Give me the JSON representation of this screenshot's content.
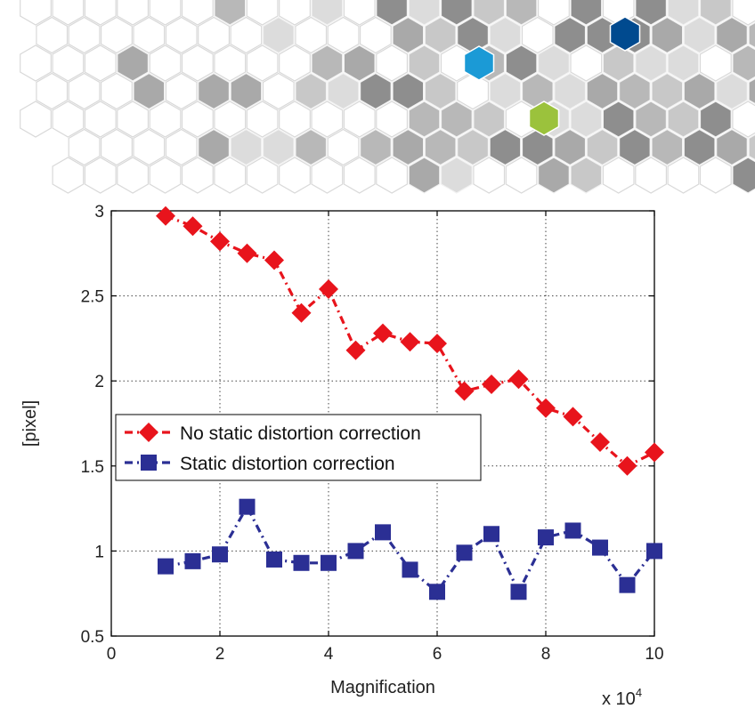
{
  "chart_data": {
    "type": "line",
    "title": "",
    "xlabel": "Magnification",
    "ylabel": "[pixel]",
    "x_multiplier_label": "x 10",
    "x_multiplier_exponent": "4",
    "xlim": [
      0,
      10
    ],
    "ylim": [
      0.5,
      3
    ],
    "xticks": [
      0,
      2,
      4,
      6,
      8,
      10
    ],
    "yticks": [
      0.5,
      1,
      1.5,
      2,
      2.5,
      3
    ],
    "xtick_labels": [
      "0",
      "2",
      "4",
      "6",
      "8",
      "10"
    ],
    "ytick_labels": [
      "0.5",
      "1",
      "1.5",
      "2",
      "2.5",
      "3"
    ],
    "grid": true,
    "legend_position": "center-left",
    "x": [
      1,
      1.5,
      2,
      2.5,
      3,
      3.5,
      4,
      4.5,
      5,
      5.5,
      6,
      6.5,
      7,
      7.5,
      8,
      8.5,
      9,
      9.5,
      10
    ],
    "series": [
      {
        "name": "No static distortion correction",
        "color": "#e8141c",
        "marker": "diamond",
        "values": [
          2.97,
          2.91,
          2.82,
          2.75,
          2.71,
          2.4,
          2.54,
          2.18,
          2.28,
          2.23,
          2.22,
          1.94,
          1.98,
          2.01,
          1.84,
          1.79,
          1.64,
          1.5,
          1.58
        ]
      },
      {
        "name": "Static distortion correction",
        "color": "#2b2f94",
        "marker": "square",
        "values": [
          0.91,
          0.94,
          0.98,
          1.26,
          0.95,
          0.93,
          0.93,
          1.0,
          1.11,
          0.89,
          0.76,
          0.99,
          1.1,
          0.76,
          1.08,
          1.12,
          1.02,
          0.8,
          1.0
        ]
      }
    ]
  },
  "decoration": {
    "hex_colors": [
      "#1b9ad6",
      "#004a8f",
      "#9bc23c",
      "#c8c8c8",
      "#a9a9a9",
      "#8e8e8e"
    ]
  }
}
